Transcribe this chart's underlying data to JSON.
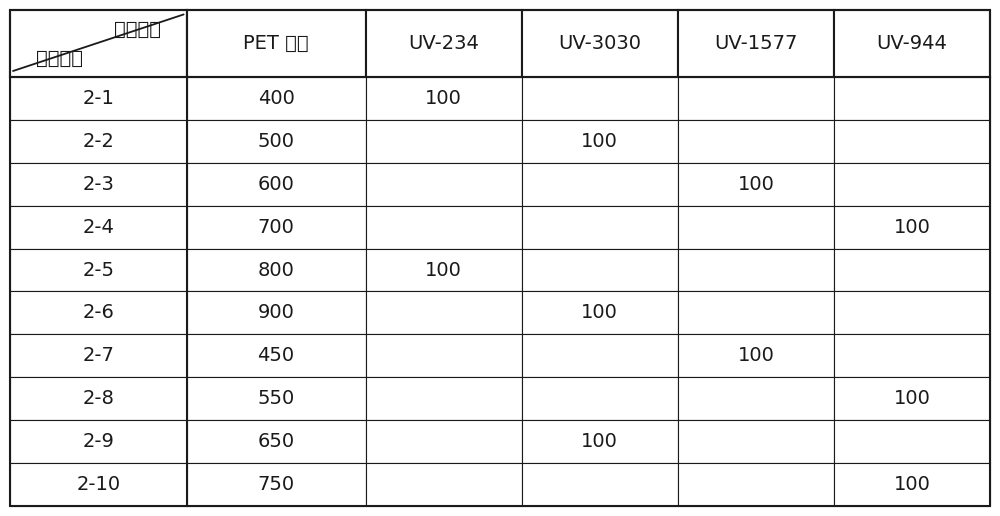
{
  "header_col_labels": [
    "PET 聚酯",
    "UV-234",
    "UV-3030",
    "UV-1577",
    "UV-944"
  ],
  "header_diagonal_top": "材料名称",
  "header_diagonal_bottom": "实施例号",
  "rows": [
    [
      "2-1",
      "400",
      "100",
      "",
      "",
      ""
    ],
    [
      "2-2",
      "500",
      "",
      "100",
      "",
      ""
    ],
    [
      "2-3",
      "600",
      "",
      "",
      "100",
      ""
    ],
    [
      "2-4",
      "700",
      "",
      "",
      "",
      "100"
    ],
    [
      "2-5",
      "800",
      "100",
      "",
      "",
      ""
    ],
    [
      "2-6",
      "900",
      "",
      "100",
      "",
      ""
    ],
    [
      "2-7",
      "450",
      "",
      "",
      "100",
      ""
    ],
    [
      "2-8",
      "550",
      "",
      "",
      "",
      "100"
    ],
    [
      "2-9",
      "650",
      "",
      "100",
      "",
      ""
    ],
    [
      "2-10",
      "750",
      "",
      "",
      "",
      "100"
    ]
  ],
  "background_color": "#ffffff",
  "border_color": "#1a1a1a",
  "text_color": "#1a1a1a",
  "font_size": 14,
  "header_font_size": 14,
  "fig_width": 10.0,
  "fig_height": 5.16,
  "dpi": 100
}
